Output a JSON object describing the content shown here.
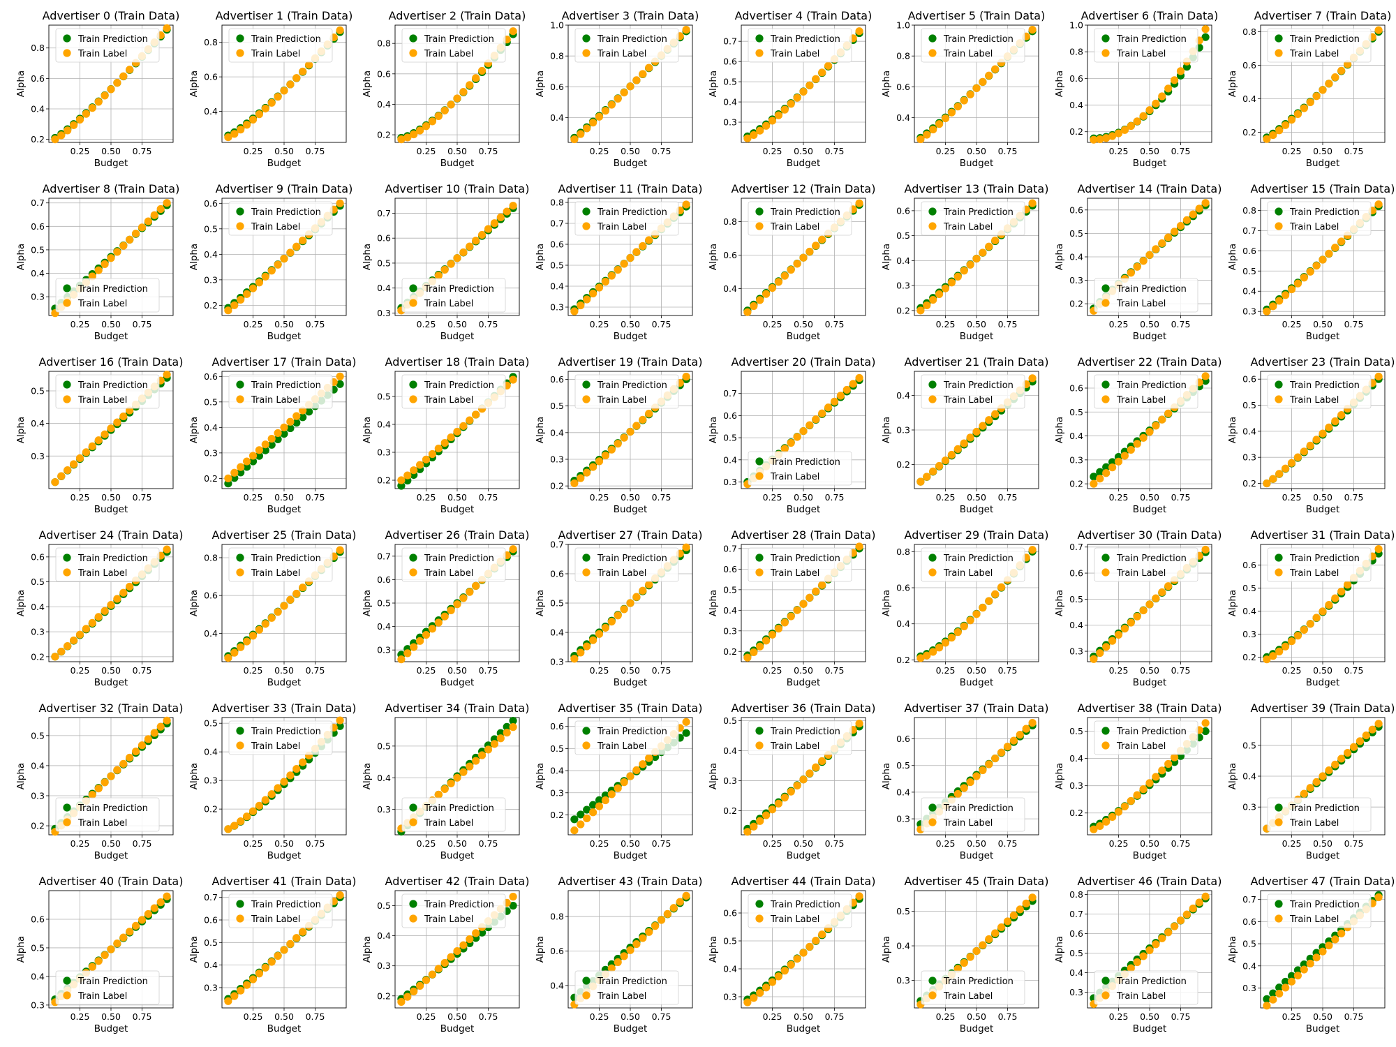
{
  "figure": {
    "rows": 6,
    "cols": 8,
    "shared": {
      "type": "scatter",
      "xlabel": "Budget",
      "ylabel": "Alpha",
      "x_ticks": [
        0.25,
        0.5,
        0.75
      ],
      "x_tick_labels": [
        "0.25",
        "0.50",
        "0.75"
      ],
      "xlim": [
        0.0,
        1.0
      ],
      "grid": true,
      "series_names": [
        "Train Prediction",
        "Train Label"
      ],
      "series_colors": [
        "#008000",
        "#ffa500"
      ],
      "n_points": 19,
      "x_start": 0.05,
      "x_end": 0.95
    }
  },
  "chart_data": [
    {
      "title": "Advertiser 0 (Train Data)",
      "ylim": [
        0.18,
        0.95
      ],
      "yticks": [
        0.2,
        0.4,
        0.6,
        0.8
      ],
      "label_start": 0.2,
      "label_end": 0.93,
      "pred_start": 0.21,
      "pred_end": 0.92,
      "curve": 1.15,
      "legend": "upper-left"
    },
    {
      "title": "Advertiser 1 (Train Data)",
      "ylim": [
        0.22,
        0.9
      ],
      "yticks": [
        0.4,
        0.6,
        0.8
      ],
      "label_start": 0.25,
      "label_end": 0.87,
      "pred_start": 0.26,
      "pred_end": 0.86,
      "curve": 1.2,
      "legend": "upper-left"
    },
    {
      "title": "Advertiser 2 (Train Data)",
      "ylim": [
        0.15,
        0.92
      ],
      "yticks": [
        0.2,
        0.4,
        0.6,
        0.8
      ],
      "label_start": 0.17,
      "label_end": 0.88,
      "pred_start": 0.18,
      "pred_end": 0.86,
      "curve": 1.4,
      "legend": "upper-left"
    },
    {
      "title": "Advertiser 3 (Train Data)",
      "ylim": [
        0.24,
        1.0
      ],
      "yticks": [
        0.4,
        0.6,
        0.8,
        1.0
      ],
      "label_start": 0.26,
      "label_end": 0.97,
      "pred_start": 0.27,
      "pred_end": 0.96,
      "curve": 1.05,
      "legend": "upper-left"
    },
    {
      "title": "Advertiser 4 (Train Data)",
      "ylim": [
        0.2,
        0.78
      ],
      "yticks": [
        0.3,
        0.4,
        0.5,
        0.6,
        0.7
      ],
      "label_start": 0.22,
      "label_end": 0.75,
      "pred_start": 0.23,
      "pred_end": 0.74,
      "curve": 1.2,
      "legend": "upper-left"
    },
    {
      "title": "Advertiser 5 (Train Data)",
      "ylim": [
        0.24,
        1.0
      ],
      "yticks": [
        0.4,
        0.6,
        0.8,
        1.0
      ],
      "label_start": 0.26,
      "label_end": 0.97,
      "pred_start": 0.27,
      "pred_end": 0.96,
      "curve": 1.1,
      "legend": "upper-left"
    },
    {
      "title": "Advertiser 6 (Train Data)",
      "ylim": [
        0.12,
        1.0
      ],
      "yticks": [
        0.2,
        0.4,
        0.6,
        0.8,
        1.0
      ],
      "label_start": 0.14,
      "label_end": 0.97,
      "pred_start": 0.15,
      "pred_end": 0.91,
      "curve": 1.9,
      "legend": "upper-left"
    },
    {
      "title": "Advertiser 7 (Train Data)",
      "ylim": [
        0.14,
        0.84
      ],
      "yticks": [
        0.2,
        0.4,
        0.6,
        0.8
      ],
      "label_start": 0.16,
      "label_end": 0.81,
      "pred_start": 0.17,
      "pred_end": 0.8,
      "curve": 1.15,
      "legend": "upper-left"
    },
    {
      "title": "Advertiser 8 (Train Data)",
      "ylim": [
        0.22,
        0.72
      ],
      "yticks": [
        0.3,
        0.4,
        0.5,
        0.6,
        0.7
      ],
      "label_start": 0.23,
      "label_end": 0.7,
      "pred_start": 0.25,
      "pred_end": 0.69,
      "curve": 1.0,
      "legend": "lower-left"
    },
    {
      "title": "Advertiser 9 (Train Data)",
      "ylim": [
        0.16,
        0.62
      ],
      "yticks": [
        0.2,
        0.3,
        0.4,
        0.5,
        0.6
      ],
      "label_start": 0.18,
      "label_end": 0.6,
      "pred_start": 0.19,
      "pred_end": 0.59,
      "curve": 1.05,
      "legend": "upper-left"
    },
    {
      "title": "Advertiser 10 (Train Data)",
      "ylim": [
        0.29,
        0.76
      ],
      "yticks": [
        0.3,
        0.4,
        0.5,
        0.6,
        0.7
      ],
      "label_start": 0.31,
      "label_end": 0.73,
      "pred_start": 0.32,
      "pred_end": 0.72,
      "curve": 1.0,
      "legend": "lower-left"
    },
    {
      "title": "Advertiser 11 (Train Data)",
      "ylim": [
        0.26,
        0.82
      ],
      "yticks": [
        0.3,
        0.4,
        0.5,
        0.6,
        0.7,
        0.8
      ],
      "label_start": 0.28,
      "label_end": 0.79,
      "pred_start": 0.29,
      "pred_end": 0.78,
      "curve": 1.0,
      "legend": "upper-left"
    },
    {
      "title": "Advertiser 12 (Train Data)",
      "ylim": [
        0.24,
        0.94
      ],
      "yticks": [
        0.4,
        0.6,
        0.8
      ],
      "label_start": 0.26,
      "label_end": 0.91,
      "pred_start": 0.27,
      "pred_end": 0.9,
      "curve": 1.0,
      "legend": "upper-left"
    },
    {
      "title": "Advertiser 13 (Train Data)",
      "ylim": [
        0.18,
        0.65
      ],
      "yticks": [
        0.2,
        0.3,
        0.4,
        0.5,
        0.6
      ],
      "label_start": 0.2,
      "label_end": 0.63,
      "pred_start": 0.21,
      "pred_end": 0.62,
      "curve": 1.05,
      "legend": "upper-left"
    },
    {
      "title": "Advertiser 14 (Train Data)",
      "ylim": [
        0.15,
        0.65
      ],
      "yticks": [
        0.2,
        0.3,
        0.4,
        0.5,
        0.6
      ],
      "label_start": 0.17,
      "label_end": 0.63,
      "pred_start": 0.18,
      "pred_end": 0.62,
      "curve": 0.95,
      "legend": "lower-left"
    },
    {
      "title": "Advertiser 15 (Train Data)",
      "ylim": [
        0.28,
        0.86
      ],
      "yticks": [
        0.3,
        0.4,
        0.5,
        0.6,
        0.7,
        0.8
      ],
      "label_start": 0.3,
      "label_end": 0.83,
      "pred_start": 0.31,
      "pred_end": 0.82,
      "curve": 1.05,
      "legend": "upper-left"
    },
    {
      "title": "Advertiser 16 (Train Data)",
      "ylim": [
        0.2,
        0.56
      ],
      "yticks": [
        0.3,
        0.4,
        0.5
      ],
      "label_start": 0.22,
      "label_end": 0.55,
      "pred_start": 0.22,
      "pred_end": 0.54,
      "curve": 1.0,
      "legend": "upper-left"
    },
    {
      "title": "Advertiser 17 (Train Data)",
      "ylim": [
        0.16,
        0.62
      ],
      "yticks": [
        0.2,
        0.3,
        0.4,
        0.5,
        0.6
      ],
      "label_start": 0.2,
      "label_end": 0.6,
      "pred_start": 0.18,
      "pred_end": 0.57,
      "curve": 1.0,
      "legend": "upper-left"
    },
    {
      "title": "Advertiser 18 (Train Data)",
      "ylim": [
        0.17,
        0.59
      ],
      "yticks": [
        0.2,
        0.3,
        0.4,
        0.5
      ],
      "label_start": 0.2,
      "label_end": 0.56,
      "pred_start": 0.18,
      "pred_end": 0.57,
      "curve": 1.05,
      "legend": "upper-left"
    },
    {
      "title": "Advertiser 19 (Train Data)",
      "ylim": [
        0.19,
        0.63
      ],
      "yticks": [
        0.2,
        0.3,
        0.4,
        0.5,
        0.6
      ],
      "label_start": 0.21,
      "label_end": 0.61,
      "pred_start": 0.22,
      "pred_end": 0.6,
      "curve": 1.05,
      "legend": "upper-left"
    },
    {
      "title": "Advertiser 20 (Train Data)",
      "ylim": [
        0.27,
        0.8
      ],
      "yticks": [
        0.3,
        0.4,
        0.5,
        0.6,
        0.7
      ],
      "label_start": 0.29,
      "label_end": 0.77,
      "pred_start": 0.3,
      "pred_end": 0.76,
      "curve": 1.0,
      "legend": "lower-left"
    },
    {
      "title": "Advertiser 21 (Train Data)",
      "ylim": [
        0.13,
        0.47
      ],
      "yticks": [
        0.2,
        0.3,
        0.4
      ],
      "label_start": 0.15,
      "label_end": 0.45,
      "pred_start": 0.15,
      "pred_end": 0.44,
      "curve": 1.05,
      "legend": "upper-left"
    },
    {
      "title": "Advertiser 22 (Train Data)",
      "ylim": [
        0.18,
        0.67
      ],
      "yticks": [
        0.2,
        0.3,
        0.4,
        0.5,
        0.6
      ],
      "label_start": 0.2,
      "label_end": 0.65,
      "pred_start": 0.23,
      "pred_end": 0.63,
      "curve": 1.05,
      "legend": "upper-left"
    },
    {
      "title": "Advertiser 23 (Train Data)",
      "ylim": [
        0.18,
        0.63
      ],
      "yticks": [
        0.2,
        0.3,
        0.4,
        0.5,
        0.6
      ],
      "label_start": 0.2,
      "label_end": 0.61,
      "pred_start": 0.2,
      "pred_end": 0.6,
      "curve": 1.1,
      "legend": "upper-left"
    },
    {
      "title": "Advertiser 24 (Train Data)",
      "ylim": [
        0.18,
        0.65
      ],
      "yticks": [
        0.2,
        0.3,
        0.4,
        0.5,
        0.6
      ],
      "label_start": 0.2,
      "label_end": 0.63,
      "pred_start": 0.2,
      "pred_end": 0.62,
      "curve": 1.05,
      "legend": "upper-left"
    },
    {
      "title": "Advertiser 25 (Train Data)",
      "ylim": [
        0.25,
        0.87
      ],
      "yticks": [
        0.4,
        0.6,
        0.8
      ],
      "label_start": 0.27,
      "label_end": 0.84,
      "pred_start": 0.28,
      "pred_end": 0.83,
      "curve": 1.05,
      "legend": "upper-left"
    },
    {
      "title": "Advertiser 26 (Train Data)",
      "ylim": [
        0.25,
        0.75
      ],
      "yticks": [
        0.3,
        0.4,
        0.5,
        0.6,
        0.7
      ],
      "label_start": 0.26,
      "label_end": 0.73,
      "pred_start": 0.28,
      "pred_end": 0.72,
      "curve": 1.0,
      "legend": "upper-left"
    },
    {
      "title": "Advertiser 27 (Train Data)",
      "ylim": [
        0.3,
        0.7
      ],
      "yticks": [
        0.3,
        0.4,
        0.5,
        0.6,
        0.7
      ],
      "label_start": 0.31,
      "label_end": 0.69,
      "pred_start": 0.32,
      "pred_end": 0.68,
      "curve": 1.0,
      "legend": "upper-left"
    },
    {
      "title": "Advertiser 28 (Train Data)",
      "ylim": [
        0.15,
        0.72
      ],
      "yticks": [
        0.2,
        0.3,
        0.4,
        0.5,
        0.6,
        0.7
      ],
      "label_start": 0.17,
      "label_end": 0.71,
      "pred_start": 0.18,
      "pred_end": 0.7,
      "curve": 1.05,
      "legend": "upper-left"
    },
    {
      "title": "Advertiser 29 (Train Data)",
      "ylim": [
        0.19,
        0.84
      ],
      "yticks": [
        0.2,
        0.4,
        0.6,
        0.8
      ],
      "label_start": 0.21,
      "label_end": 0.81,
      "pred_start": 0.22,
      "pred_end": 0.8,
      "curve": 1.3,
      "legend": "upper-left"
    },
    {
      "title": "Advertiser 30 (Train Data)",
      "ylim": [
        0.26,
        0.71
      ],
      "yticks": [
        0.3,
        0.4,
        0.5,
        0.6,
        0.7
      ],
      "label_start": 0.27,
      "label_end": 0.69,
      "pred_start": 0.28,
      "pred_end": 0.68,
      "curve": 1.0,
      "legend": "upper-left"
    },
    {
      "title": "Advertiser 31 (Train Data)",
      "ylim": [
        0.18,
        0.69
      ],
      "yticks": [
        0.2,
        0.3,
        0.4,
        0.5,
        0.6
      ],
      "label_start": 0.19,
      "label_end": 0.67,
      "pred_start": 0.2,
      "pred_end": 0.65,
      "curve": 1.2,
      "legend": "upper-left"
    },
    {
      "title": "Advertiser 32 (Train Data)",
      "ylim": [
        0.17,
        0.56
      ],
      "yticks": [
        0.2,
        0.3,
        0.4,
        0.5
      ],
      "label_start": 0.18,
      "label_end": 0.55,
      "pred_start": 0.19,
      "pred_end": 0.54,
      "curve": 1.0,
      "legend": "lower-left"
    },
    {
      "title": "Advertiser 33 (Train Data)",
      "ylim": [
        0.11,
        0.52
      ],
      "yticks": [
        0.2,
        0.3,
        0.4,
        0.5
      ],
      "label_start": 0.13,
      "label_end": 0.51,
      "pred_start": 0.13,
      "pred_end": 0.49,
      "curve": 1.2,
      "legend": "upper-left"
    },
    {
      "title": "Advertiser 34 (Train Data)",
      "ylim": [
        0.22,
        0.59
      ],
      "yticks": [
        0.3,
        0.4,
        0.5
      ],
      "label_start": 0.24,
      "label_end": 0.56,
      "pred_start": 0.23,
      "pred_end": 0.58,
      "curve": 1.0,
      "legend": "lower-left"
    },
    {
      "title": "Advertiser 35 (Train Data)",
      "ylim": [
        0.11,
        0.64
      ],
      "yticks": [
        0.2,
        0.3,
        0.4,
        0.5,
        0.6
      ],
      "label_start": 0.13,
      "label_end": 0.62,
      "pred_start": 0.18,
      "pred_end": 0.57,
      "curve": 1.0,
      "legend": "upper-left"
    },
    {
      "title": "Advertiser 36 (Train Data)",
      "ylim": [
        0.12,
        0.51
      ],
      "yticks": [
        0.2,
        0.3,
        0.4,
        0.5
      ],
      "label_start": 0.13,
      "label_end": 0.49,
      "pred_start": 0.14,
      "pred_end": 0.48,
      "curve": 1.05,
      "legend": "upper-left"
    },
    {
      "title": "Advertiser 37 (Train Data)",
      "ylim": [
        0.24,
        0.68
      ],
      "yticks": [
        0.3,
        0.4,
        0.5,
        0.6
      ],
      "label_start": 0.26,
      "label_end": 0.66,
      "pred_start": 0.28,
      "pred_end": 0.65,
      "curve": 1.0,
      "legend": "lower-left"
    },
    {
      "title": "Advertiser 38 (Train Data)",
      "ylim": [
        0.12,
        0.55
      ],
      "yticks": [
        0.2,
        0.3,
        0.4,
        0.5
      ],
      "label_start": 0.14,
      "label_end": 0.53,
      "pred_start": 0.15,
      "pred_end": 0.5,
      "curve": 1.2,
      "legend": "upper-left"
    },
    {
      "title": "Advertiser 39 (Train Data)",
      "ylim": [
        0.21,
        0.59
      ],
      "yticks": [
        0.3,
        0.4,
        0.5
      ],
      "label_start": 0.23,
      "label_end": 0.57,
      "pred_start": 0.23,
      "pred_end": 0.56,
      "curve": 1.0,
      "legend": "lower-left"
    },
    {
      "title": "Advertiser 40 (Train Data)",
      "ylim": [
        0.29,
        0.7
      ],
      "yticks": [
        0.3,
        0.4,
        0.5,
        0.6
      ],
      "label_start": 0.31,
      "label_end": 0.68,
      "pred_start": 0.32,
      "pred_end": 0.67,
      "curve": 1.0,
      "legend": "lower-left"
    },
    {
      "title": "Advertiser 41 (Train Data)",
      "ylim": [
        0.21,
        0.73
      ],
      "yticks": [
        0.3,
        0.4,
        0.5,
        0.6,
        0.7
      ],
      "label_start": 0.24,
      "label_end": 0.71,
      "pred_start": 0.25,
      "pred_end": 0.7,
      "curve": 1.05,
      "legend": "upper-left"
    },
    {
      "title": "Advertiser 42 (Train Data)",
      "ylim": [
        0.16,
        0.55
      ],
      "yticks": [
        0.2,
        0.3,
        0.4,
        0.5
      ],
      "label_start": 0.18,
      "label_end": 0.53,
      "pred_start": 0.19,
      "pred_end": 0.5,
      "curve": 1.05,
      "legend": "upper-left"
    },
    {
      "title": "Advertiser 43 (Train Data)",
      "ylim": [
        0.27,
        0.95
      ],
      "yticks": [
        0.4,
        0.6,
        0.8
      ],
      "label_start": 0.29,
      "label_end": 0.92,
      "pred_start": 0.33,
      "pred_end": 0.91,
      "curve": 1.0,
      "legend": "lower-left"
    },
    {
      "title": "Advertiser 44 (Train Data)",
      "ylim": [
        0.26,
        0.68
      ],
      "yticks": [
        0.3,
        0.4,
        0.5,
        0.6
      ],
      "label_start": 0.28,
      "label_end": 0.66,
      "pred_start": 0.29,
      "pred_end": 0.65,
      "curve": 1.1,
      "legend": "upper-left"
    },
    {
      "title": "Advertiser 45 (Train Data)",
      "ylim": [
        0.22,
        0.56
      ],
      "yticks": [
        0.3,
        0.4,
        0.5
      ],
      "label_start": 0.23,
      "label_end": 0.54,
      "pred_start": 0.24,
      "pred_end": 0.53,
      "curve": 1.0,
      "legend": "lower-left"
    },
    {
      "title": "Advertiser 46 (Train Data)",
      "ylim": [
        0.22,
        0.82
      ],
      "yticks": [
        0.3,
        0.4,
        0.5,
        0.6,
        0.7,
        0.8
      ],
      "label_start": 0.24,
      "label_end": 0.79,
      "pred_start": 0.27,
      "pred_end": 0.78,
      "curve": 1.0,
      "legend": "lower-left"
    },
    {
      "title": "Advertiser 47 (Train Data)",
      "ylim": [
        0.21,
        0.74
      ],
      "yticks": [
        0.3,
        0.4,
        0.5,
        0.6,
        0.7
      ],
      "label_start": 0.22,
      "label_end": 0.71,
      "pred_start": 0.25,
      "pred_end": 0.72,
      "curve": 1.0,
      "legend": "upper-left"
    }
  ]
}
